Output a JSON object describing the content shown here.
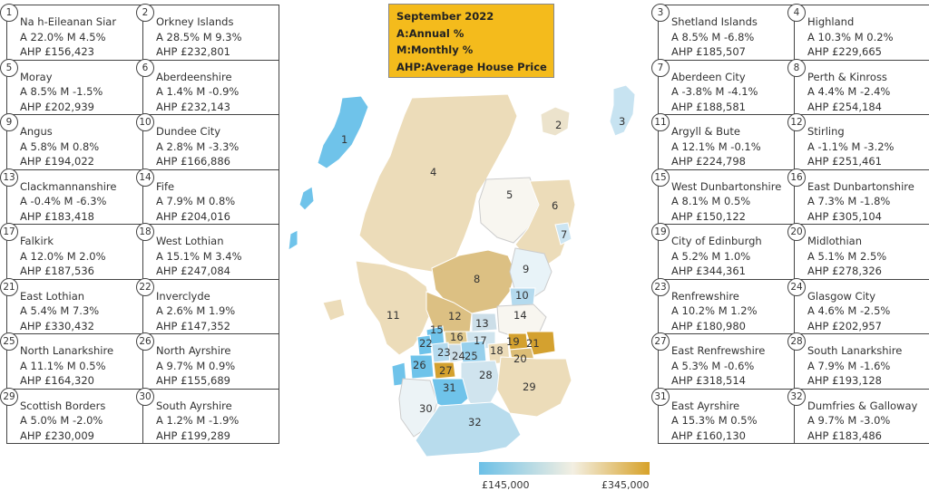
{
  "title_box": {
    "line1": "September 2022",
    "line2": "A:Annual %",
    "line3": "M:Monthly %",
    "line4": "AHP:Average House Price"
  },
  "regions": [
    {
      "num": "1",
      "name": "Na h-Eileanan Siar",
      "change": "A 22.0%   M 4.5%",
      "price": "AHP £156,423"
    },
    {
      "num": "2",
      "name": "Orkney Islands",
      "change": "A 28.5%   M 9.3%",
      "price": "AHP £232,801"
    },
    {
      "num": "3",
      "name": "Shetland Islands",
      "change": "A 8.5%   M -6.8%",
      "price": "AHP £185,507"
    },
    {
      "num": "4",
      "name": "Highland",
      "change": "A 10.3%   M 0.2%",
      "price": "AHP £229,665"
    },
    {
      "num": "5",
      "name": "Moray",
      "change": "A 8.5%   M -1.5%",
      "price": "AHP £202,939"
    },
    {
      "num": "6",
      "name": "Aberdeenshire",
      "change": "A 1.4%   M -0.9%",
      "price": "AHP £232,143"
    },
    {
      "num": "7",
      "name": "Aberdeen City",
      "change": "A -3.8%   M -4.1%",
      "price": "AHP £188,581"
    },
    {
      "num": "8",
      "name": "Perth & Kinross",
      "change": "A 4.4%   M -2.4%",
      "price": "AHP £254,184"
    },
    {
      "num": "9",
      "name": "Angus",
      "change": "A 5.8%   M 0.8%",
      "price": "AHP £194,022"
    },
    {
      "num": "10",
      "name": "Dundee City",
      "change": "A 2.8%   M -3.3%",
      "price": "AHP £166,886"
    },
    {
      "num": "11",
      "name": "Argyll & Bute",
      "change": "A 12.1%   M -0.1%",
      "price": "AHP £224,798"
    },
    {
      "num": "12",
      "name": "Stirling",
      "change": "A -1.1%   M -3.2%",
      "price": "AHP £251,461"
    },
    {
      "num": "13",
      "name": "Clackmannanshire",
      "change": "A -0.4%   M -6.3%",
      "price": "AHP £183,418"
    },
    {
      "num": "14",
      "name": "Fife",
      "change": "A 7.9%   M 0.8%",
      "price": "AHP £204,016"
    },
    {
      "num": "15",
      "name": "West Dunbartonshire",
      "change": "A 8.1%   M 0.5%",
      "price": "AHP £150,122"
    },
    {
      "num": "16",
      "name": "East Dunbartonshire",
      "change": "A 7.3%   M -1.8%",
      "price": "AHP £305,104"
    },
    {
      "num": "17",
      "name": "Falkirk",
      "change": "A 12.0%   M 2.0%",
      "price": "AHP £187,536"
    },
    {
      "num": "18",
      "name": "West Lothian",
      "change": "A 15.1%   M 3.4%",
      "price": "AHP £247,084"
    },
    {
      "num": "19",
      "name": "City of Edinburgh",
      "change": "A 5.2%   M 1.0%",
      "price": "AHP £344,361"
    },
    {
      "num": "20",
      "name": "Midlothian",
      "change": "A 5.1%   M 2.5%",
      "price": "AHP £278,326"
    },
    {
      "num": "21",
      "name": "East Lothian",
      "change": "A 5.4%   M 7.3%",
      "price": "AHP £330,432"
    },
    {
      "num": "22",
      "name": "Inverclyde",
      "change": "A 2.6%   M 1.9%",
      "price": "AHP £147,352"
    },
    {
      "num": "23",
      "name": "Renfrewshire",
      "change": "A 10.2%   M 1.2%",
      "price": "AHP £180,980"
    },
    {
      "num": "24",
      "name": "Glasgow City",
      "change": "A 4.6%   M -2.5%",
      "price": "AHP £202,957"
    },
    {
      "num": "25",
      "name": "North Lanarkshire",
      "change": "A 11.1%   M 0.5%",
      "price": "AHP £164,320"
    },
    {
      "num": "26",
      "name": "North Ayrshire",
      "change": "A 9.7%   M 0.9%",
      "price": "AHP £155,689"
    },
    {
      "num": "27",
      "name": "East Renfrewshire",
      "change": "A 5.3%   M -0.6%",
      "price": "AHP £318,514"
    },
    {
      "num": "28",
      "name": "South Lanarkshire",
      "change": "A 7.9%   M -1.6%",
      "price": "AHP £193,128"
    },
    {
      "num": "29",
      "name": "Scottish Borders",
      "change": "A 5.0%   M -2.0%",
      "price": "AHP £230,009"
    },
    {
      "num": "30",
      "name": "South Ayrshire",
      "change": "A 1.2%   M -1.9%",
      "price": "AHP £199,289"
    },
    {
      "num": "31",
      "name": "East Ayrshire",
      "change": "A 15.3%   M 0.5%",
      "price": "AHP £160,130"
    },
    {
      "num": "32",
      "name": "Dumfries & Galloway",
      "change": "A 9.7%   M -3.0%",
      "price": "AHP £183,486"
    }
  ],
  "legend": {
    "min_label": "£145,000",
    "max_label": "£345,000",
    "low_color": "#6cc0e7",
    "mid_color": "#f3efe2",
    "high_color": "#d7a229"
  }
}
